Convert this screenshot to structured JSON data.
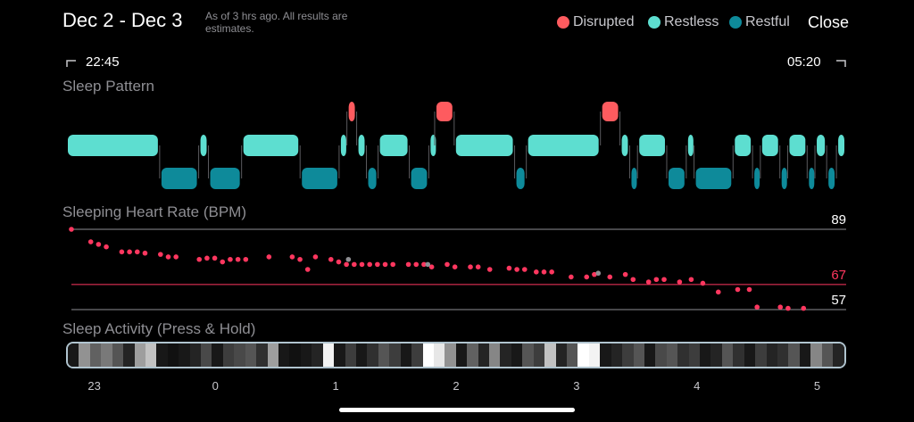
{
  "header": {
    "date_range": "Dec 2 - Dec 3",
    "as_of_note": "As of 3 hrs ago. All results are estimates.",
    "close_label": "Close"
  },
  "legend": [
    {
      "label": "Disrupted",
      "color": "#fe5b5f"
    },
    {
      "label": "Restless",
      "color": "#5dded0"
    },
    {
      "label": "Restful",
      "color": "#0e8a9a"
    }
  ],
  "time_range": {
    "start": "22:45",
    "end": "05:20"
  },
  "sleep_pattern": {
    "title": "Sleep Pattern",
    "stage_colors": {
      "disrupted": "#fe5b5f",
      "restless": "#5dded0",
      "restful": "#0e8a9a"
    },
    "segments": [
      {
        "stage": "restless",
        "start": 0,
        "end": 24
      },
      {
        "stage": "restful",
        "start": 24,
        "end": 34
      },
      {
        "stage": "restless",
        "start": 34,
        "end": 36.5
      },
      {
        "stage": "restful",
        "start": 36.5,
        "end": 45
      },
      {
        "stage": "restless",
        "start": 45,
        "end": 60
      },
      {
        "stage": "restful",
        "start": 60,
        "end": 70
      },
      {
        "stage": "restless",
        "start": 70,
        "end": 72
      },
      {
        "stage": "disrupted",
        "start": 72,
        "end": 74.5
      },
      {
        "stage": "restless",
        "start": 74.5,
        "end": 77
      },
      {
        "stage": "restful",
        "start": 77,
        "end": 80
      },
      {
        "stage": "restless",
        "start": 80,
        "end": 88
      },
      {
        "stage": "restful",
        "start": 88,
        "end": 93
      },
      {
        "stage": "restless",
        "start": 93,
        "end": 94.5
      },
      {
        "stage": "disrupted",
        "start": 94.5,
        "end": 99.5
      },
      {
        "stage": "restless",
        "start": 99.5,
        "end": 115
      },
      {
        "stage": "restful",
        "start": 115,
        "end": 118
      },
      {
        "stage": "restless",
        "start": 118,
        "end": 137
      },
      {
        "stage": "disrupted",
        "start": 137,
        "end": 142
      },
      {
        "stage": "restless",
        "start": 142,
        "end": 144.5
      },
      {
        "stage": "restful",
        "start": 144.5,
        "end": 146.5
      },
      {
        "stage": "restless",
        "start": 146.5,
        "end": 154
      },
      {
        "stage": "restful",
        "start": 154,
        "end": 159
      },
      {
        "stage": "restless",
        "start": 159,
        "end": 161
      },
      {
        "stage": "restful",
        "start": 161,
        "end": 171
      },
      {
        "stage": "restless",
        "start": 171,
        "end": 176
      },
      {
        "stage": "restful",
        "start": 176,
        "end": 178
      },
      {
        "stage": "restless",
        "start": 178,
        "end": 183
      },
      {
        "stage": "restful",
        "start": 183,
        "end": 185
      },
      {
        "stage": "restless",
        "start": 185,
        "end": 190
      },
      {
        "stage": "restful",
        "start": 190,
        "end": 192
      },
      {
        "stage": "restless",
        "start": 192,
        "end": 195
      },
      {
        "stage": "restful",
        "start": 195,
        "end": 197.5
      },
      {
        "stage": "restless",
        "start": 197.5,
        "end": 200
      }
    ]
  },
  "heart_rate": {
    "title": "Sleeping Heart Rate (BPM)",
    "max_label": "89",
    "avg_label": "67",
    "min_label": "57",
    "max": 89,
    "avg": 67,
    "min": 57,
    "avg_color": "#ff375f",
    "point_color": "#ff375f",
    "gap_color": "#8e8e93",
    "points": [
      [
        0,
        89
      ],
      [
        5,
        84
      ],
      [
        7,
        83
      ],
      [
        9,
        82
      ],
      [
        13,
        80
      ],
      [
        15,
        80
      ],
      [
        17,
        80
      ],
      [
        19,
        79.5
      ],
      [
        23,
        79
      ],
      [
        25,
        78
      ],
      [
        27,
        78
      ],
      [
        33,
        77
      ],
      [
        35,
        77.5
      ],
      [
        37,
        77.5
      ],
      [
        39,
        76
      ],
      [
        41,
        77
      ],
      [
        43,
        77
      ],
      [
        45,
        77
      ],
      [
        51,
        78
      ],
      [
        57,
        78
      ],
      [
        59,
        77
      ],
      [
        61,
        73
      ],
      [
        63,
        78
      ],
      [
        67,
        77
      ],
      [
        69,
        76
      ],
      [
        71,
        75
      ],
      [
        73,
        75
      ],
      [
        75,
        75
      ],
      [
        77,
        75
      ],
      [
        79,
        75
      ],
      [
        81,
        75
      ],
      [
        83,
        75
      ],
      [
        87,
        75
      ],
      [
        89,
        75
      ],
      [
        91,
        75
      ],
      [
        93,
        74
      ],
      [
        97,
        75
      ],
      [
        99,
        74
      ],
      [
        103,
        74
      ],
      [
        105,
        74
      ],
      [
        108,
        73
      ],
      [
        113,
        73.5
      ],
      [
        115,
        73
      ],
      [
        117,
        73
      ],
      [
        120,
        72
      ],
      [
        122,
        72
      ],
      [
        124,
        72
      ],
      [
        129,
        70
      ],
      [
        133,
        70
      ],
      [
        135,
        71
      ],
      [
        139,
        70
      ],
      [
        143,
        71
      ],
      [
        145,
        69
      ],
      [
        149,
        68
      ],
      [
        151,
        69
      ],
      [
        153,
        69
      ],
      [
        157,
        68
      ],
      [
        160,
        69
      ],
      [
        163,
        67.5
      ],
      [
        167,
        64
      ],
      [
        172,
        65
      ],
      [
        175,
        65
      ],
      [
        177,
        58
      ],
      [
        183,
        58
      ],
      [
        185,
        57.5
      ],
      [
        189,
        57.5
      ]
    ],
    "gap_points": [
      [
        71.5,
        77
      ],
      [
        92,
        75
      ],
      [
        136,
        71.5
      ]
    ]
  },
  "activity": {
    "title": "Sleep Activity (Press & Hold)",
    "levels": [
      0.05,
      0.55,
      0.35,
      0.45,
      0.3,
      0.1,
      0.6,
      0.75,
      0.05,
      0.02,
      0.05,
      0.1,
      0.25,
      0.05,
      0.2,
      0.25,
      0.3,
      0.15,
      0.6,
      0.05,
      0.02,
      0.05,
      0.1,
      0.95,
      0.05,
      0.2,
      0.05,
      0.15,
      0.3,
      0.2,
      0.05,
      0.2,
      1.0,
      0.9,
      0.55,
      0.05,
      0.35,
      0.1,
      0.5,
      0.1,
      0.05,
      0.3,
      0.2,
      0.75,
      0.1,
      0.3,
      1.0,
      0.95,
      0.05,
      0.1,
      0.2,
      0.3,
      0.05,
      0.25,
      0.3,
      0.15,
      0.2,
      0.05,
      0.1,
      0.3,
      0.15,
      0.05,
      0.2,
      0.1,
      0.15,
      0.3,
      0.05,
      0.5,
      0.3,
      0.1
    ]
  },
  "hour_axis": [
    {
      "label": "23",
      "pos": 0.034
    },
    {
      "label": "0",
      "pos": 0.19
    },
    {
      "label": "1",
      "pos": 0.345
    },
    {
      "label": "2",
      "pos": 0.5
    },
    {
      "label": "3",
      "pos": 0.655
    },
    {
      "label": "4",
      "pos": 0.81
    },
    {
      "label": "5",
      "pos": 0.965
    }
  ]
}
